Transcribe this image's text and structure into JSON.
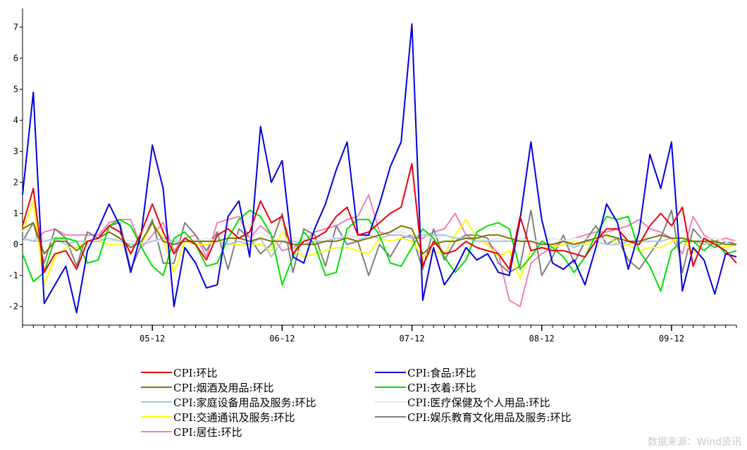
{
  "chart_data": {
    "type": "line",
    "title": "",
    "xlabel": "",
    "ylabel": "",
    "ylim": [
      -2.6,
      7.6
    ],
    "yticks": [
      -2,
      -1,
      0,
      1,
      2,
      3,
      4,
      5,
      6,
      7
    ],
    "x_tick_labels": [
      "05-12",
      "06-12",
      "07-12",
      "08-12",
      "09-12"
    ],
    "x_tick_indices": [
      12,
      24,
      36,
      48,
      60
    ],
    "n_points": 67,
    "grid": false,
    "legend_position": "bottom",
    "series": [
      {
        "name": "CPI:环比",
        "color": "#e8000b",
        "values": [
          0.6,
          1.8,
          -0.9,
          -0.3,
          -0.2,
          -0.8,
          0.1,
          0.2,
          0.6,
          0.4,
          -0.3,
          0.4,
          1.3,
          0.4,
          -0.3,
          0.2,
          0,
          -0.5,
          0.3,
          0.5,
          0.2,
          0.4,
          1.4,
          0.7,
          0.9,
          -0.3,
          0.1,
          0.2,
          0.4,
          0.9,
          1.2,
          0.3,
          0.4,
          0.7,
          1,
          1.2,
          2.6,
          -0.7,
          0.1,
          -0.3,
          -0.2,
          0.1,
          -0.1,
          -0.2,
          -0.3,
          -0.8,
          0.9,
          -0.2,
          -0.1,
          -0.2,
          -0.2,
          -0.3,
          -0.4,
          0.1,
          0.5,
          0.5,
          0.1,
          0,
          0.6,
          1,
          0.6,
          1.2,
          -0.7,
          0.2,
          0,
          -0.2,
          -0.6
        ]
      },
      {
        "name": "CPI:食品:环比",
        "color": "#0000e0",
        "values": [
          1.6,
          4.9,
          -1.9,
          -1.3,
          -0.7,
          -2.2,
          -0.2,
          0.5,
          1.3,
          0.6,
          -0.9,
          0.4,
          3.2,
          1.8,
          -2,
          -0.1,
          -0.6,
          -1.4,
          -1.3,
          0.9,
          1.4,
          -0.4,
          3.8,
          2,
          2.7,
          -0.4,
          -0.6,
          0.5,
          1.3,
          2.4,
          3.3,
          0.3,
          0.3,
          1.3,
          2.5,
          3.3,
          7.1,
          -1.8,
          -0.1,
          -1.3,
          -0.8,
          -0.1,
          -0.5,
          -0.3,
          -0.9,
          -1,
          0.8,
          3.3,
          0.8,
          -0.6,
          -0.8,
          -0.5,
          -1.3,
          -0.1,
          1.3,
          0.7,
          -0.8,
          0.4,
          2.9,
          1.8,
          3.3,
          -1.5,
          -0.1,
          -0.5,
          -1.6,
          -0.3,
          -0.4
        ]
      },
      {
        "name": "CPI:烟酒及用品:环比",
        "color": "#7f7500",
        "values": [
          0.5,
          0.7,
          -0.3,
          0.1,
          0.1,
          -0.2,
          0.1,
          0.2,
          0.4,
          0.2,
          -0.1,
          0.1,
          0.7,
          0.1,
          0,
          0.1,
          0.1,
          0.1,
          0.1,
          0.2,
          0.2,
          0.1,
          0.2,
          0.1,
          0.1,
          0,
          0,
          0,
          0.1,
          0.1,
          0.2,
          0.1,
          0.2,
          0.3,
          0.4,
          0.6,
          0.5,
          -0.3,
          0,
          0.1,
          0.1,
          0.2,
          0.2,
          0.3,
          0.3,
          0.2,
          0.1,
          0.1,
          0,
          0,
          0.1,
          0,
          0.1,
          0.2,
          0.3,
          0.2,
          0.1,
          0.1,
          0.2,
          0.3,
          0.2,
          0.2,
          0.1,
          0.1,
          0.1,
          0,
          0
        ]
      },
      {
        "name": "CPI:衣着:环比",
        "color": "#00e000",
        "values": [
          -0.3,
          -1.2,
          -0.9,
          0.2,
          0.2,
          0.1,
          -0.6,
          -0.5,
          0.6,
          0.8,
          0.6,
          -0.1,
          -0.7,
          -1,
          0.2,
          0.4,
          0,
          -0.7,
          -0.6,
          0.2,
          0.8,
          1.1,
          0.9,
          0.3,
          -1.3,
          -0.4,
          0.4,
          0,
          -1,
          -0.9,
          0.5,
          0.8,
          0.8,
          0.3,
          -0.6,
          -0.7,
          -0.1,
          0.5,
          0.2,
          -0.4,
          -0.9,
          -0.5,
          0.4,
          0.6,
          0.7,
          0.5,
          -0.8,
          -0.4,
          0.1,
          -0.1,
          -0.4,
          -0.9,
          -0.4,
          0.3,
          0.9,
          0.8,
          0.9,
          -0.2,
          -0.7,
          -1.5,
          -0.2,
          0.1,
          0.1,
          -0.2,
          0.1,
          -0.3,
          -0.2
        ]
      },
      {
        "name": "CPI:家庭设备用品及服务:环比",
        "color": "#a8c4f0",
        "values": [
          0.2,
          0.1,
          0.1,
          0.2,
          0,
          0.1,
          0.1,
          0.1,
          0.2,
          0.1,
          0,
          0,
          0.1,
          0.2,
          0.1,
          0.1,
          0.1,
          0.1,
          0.1,
          0,
          0.1,
          0,
          0.2,
          -0.4,
          0.1,
          0.1,
          0,
          0.1,
          0.1,
          0.2,
          0.2,
          0.1,
          0.3,
          0.2,
          0.3,
          0.3,
          0.2,
          0.3,
          0.3,
          0.3,
          0.2,
          0.2,
          0.1,
          0.1,
          0.1,
          0.1,
          0.1,
          0.1,
          0,
          0,
          0.1,
          -0.1,
          0.1,
          0.1,
          0,
          0,
          0.1,
          0.1,
          0.1,
          0.1,
          0.2,
          0.2,
          0.1,
          0,
          0.1,
          0,
          0
        ]
      },
      {
        "name": "CPI:医疗保健及个人用品:环比",
        "color": "#e6e6ee",
        "values": [
          0.1,
          0.2,
          0.1,
          0.1,
          0.2,
          0.1,
          0.1,
          0.2,
          0.1,
          0.2,
          0.1,
          0.1,
          0.1,
          0.1,
          0,
          0.1,
          0.1,
          0.2,
          0.1,
          0.2,
          0.3,
          0.2,
          0.4,
          0.2,
          0.1,
          0.2,
          0.2,
          0.1,
          0.2,
          0.2,
          0.3,
          0.2,
          0.2,
          0.3,
          0.4,
          0.4,
          0.3,
          0.3,
          0.2,
          0.3,
          0.2,
          0.2,
          0.2,
          0.1,
          0.2,
          0.1,
          0.2,
          0.1,
          0.1,
          0.2,
          0.1,
          0.2,
          0.2,
          0.1,
          0.2,
          0.2,
          0.3,
          0.2,
          0.2,
          0.3,
          0.2,
          0.2,
          0.1,
          0.2,
          0.2,
          0.1,
          0.1
        ]
      },
      {
        "name": "CPI:交通通讯及服务:环比",
        "color": "#ffff00",
        "values": [
          0.4,
          1.4,
          -1.3,
          -0.4,
          -0.1,
          -0.1,
          0.1,
          0.1,
          0,
          0,
          0,
          0,
          0.7,
          0.2,
          -0.9,
          0.1,
          0,
          0,
          0.1,
          0,
          0,
          0,
          0,
          -0.2,
          0.4,
          -0.1,
          -0.4,
          -0.3,
          -0.2,
          -0.1,
          -0.1,
          -0.2,
          -0.3,
          0.2,
          0.1,
          0.2,
          0.1,
          -0.4,
          -0.2,
          -0.3,
          0.3,
          0.8,
          0.2,
          0,
          -0.4,
          -0.2,
          -1.1,
          -0.2,
          -0.1,
          -0.1,
          0,
          0.1,
          0,
          0.2,
          0.3,
          0,
          0,
          -0.2,
          -0.1,
          -0.1,
          0.1,
          0.2,
          -0.3,
          0.1,
          0,
          -0.1,
          0
        ]
      },
      {
        "name": "CPI:娱乐教育文化用品及服务:环比",
        "color": "#808080",
        "values": [
          0.1,
          0.7,
          -0.6,
          0.5,
          0.2,
          -0.7,
          0.4,
          0.2,
          0.6,
          0.7,
          -0.8,
          0,
          0.8,
          -0.6,
          -0.6,
          0.7,
          0.3,
          -0.2,
          0.4,
          -0.8,
          0.5,
          0.2,
          -0.3,
          0,
          1,
          -0.9,
          0.5,
          0.3,
          -0.7,
          0.6,
          0,
          0.1,
          -1,
          0,
          -0.4,
          0.2,
          0.3,
          -0.8,
          0.5,
          -0.5,
          0.1,
          0.3,
          0.3,
          0.2,
          -0.6,
          -0.9,
          -0.7,
          1.1,
          -1,
          -0.4,
          0.3,
          -0.6,
          0.1,
          0.6,
          0,
          0.2,
          -0.5,
          -0.8,
          -0.3,
          0.2,
          1.1,
          -0.9,
          0.5,
          0.1,
          -0.1,
          0.1,
          0
        ]
      },
      {
        "name": "CPI:居住:环比",
        "color": "#f080b8",
        "values": [
          0.2,
          0.1,
          0.4,
          0.5,
          0.3,
          0.3,
          0.3,
          0.3,
          0.7,
          0.8,
          0.8,
          -0.1,
          0.3,
          0.7,
          -0.2,
          0.2,
          0.3,
          -0.4,
          0.7,
          0.8,
          0.9,
          0.2,
          0.6,
          0.3,
          -0.2,
          -0.1,
          0.1,
          0.4,
          0.5,
          0.6,
          0.8,
          0.9,
          1.6,
          0.4,
          0.3,
          0.3,
          0.2,
          0.2,
          0.4,
          0.5,
          1,
          0.3,
          0.1,
          0.1,
          -0.3,
          -1.8,
          -2,
          -0.6,
          -0.3,
          -0.1,
          0.1,
          0.2,
          0.3,
          0.4,
          0.4,
          0.5,
          0.6,
          0.8,
          0.5,
          0.4,
          0.2,
          -0.3,
          0.9,
          0.3,
          0.1,
          0.2,
          0.1
        ]
      }
    ]
  },
  "watermark": "数据来源：Wind资讯"
}
